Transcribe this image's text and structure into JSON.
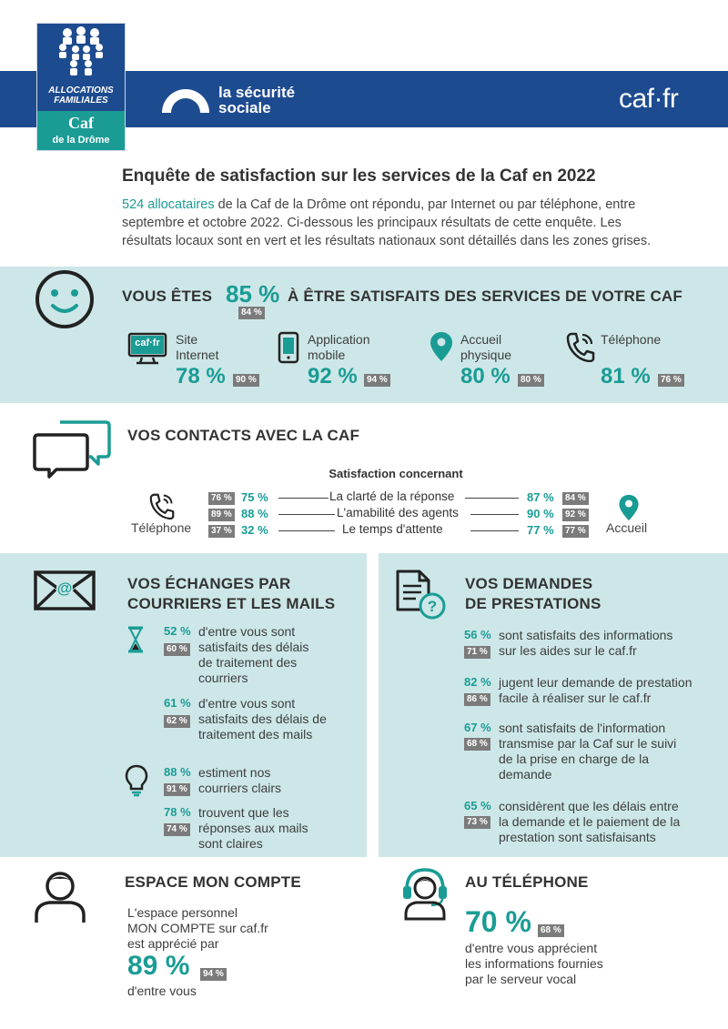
{
  "header": {
    "logo_line1": "ALLOCATIONS",
    "logo_line2": "FAMILIALES",
    "logo_caf": "Caf",
    "logo_dept": "de la Drôme",
    "secu_line1": "la sécurité",
    "secu_line2": "sociale",
    "caf_fr": "caf·fr"
  },
  "intro": {
    "title": "Enquête de satisfaction sur les services de la Caf en 2022",
    "highlight": "524 allocataires",
    "text1": " de la Caf de la Drôme ont répondu, par Internet ou par téléphone, entre",
    "text2": "septembre et octobre 2022. Ci-dessous les principaux résultats de cette enquête. Les",
    "text3": "résultats locaux sont en vert et les résultats nationaux sont détaillés dans les zones grises."
  },
  "satisfaction": {
    "prefix": "VOUS ÊTES",
    "pct": "85 %",
    "national": "84 %",
    "suffix": "À ÊTRE SATISFAITS DES SERVICES DE VOTRE CAF",
    "channels": [
      {
        "label1": "Site",
        "label2": "Internet",
        "pct": "78 %",
        "national": "90 %",
        "icon": "computer-icon",
        "icon_text": "caf·fr"
      },
      {
        "label1": "Application",
        "label2": "mobile",
        "pct": "92 %",
        "national": "94 %",
        "icon": "mobile-icon"
      },
      {
        "label1": "Accueil",
        "label2": "physique",
        "pct": "80 %",
        "national": "80 %",
        "icon": "location-icon"
      },
      {
        "label1": "Téléphone",
        "label2": "",
        "pct": "81 %",
        "national": "76 %",
        "icon": "phone-icon"
      }
    ]
  },
  "contacts": {
    "title": "VOS CONTACTS AVEC LA CAF",
    "subtitle": "Satisfaction concernant",
    "left_label": "Téléphone",
    "right_label": "Accueil",
    "rows": [
      {
        "criterion": "La clarté de la réponse",
        "phone_nat": "76 %",
        "phone_pct": "75 %",
        "acc_pct": "87 %",
        "acc_nat": "84 %"
      },
      {
        "criterion": "L'amabilité des agents",
        "phone_nat": "89 %",
        "phone_pct": "88 %",
        "acc_pct": "90 %",
        "acc_nat": "92 %"
      },
      {
        "criterion": "Le temps d'attente",
        "phone_nat": "37 %",
        "phone_pct": "32 %",
        "acc_pct": "77 %",
        "acc_nat": "77 %"
      }
    ]
  },
  "mails": {
    "title1": "VOS ÉCHANGES PAR",
    "title2": "COURRIERS ET LES MAILS",
    "delays": [
      {
        "pct": "52 %",
        "nat": "60 %",
        "lines": [
          "d'entre vous sont",
          "satisfaits des délais",
          "de traitement des",
          "courriers"
        ]
      },
      {
        "pct": "61 %",
        "nat": "62 %",
        "lines": [
          "d'entre vous sont",
          "satisfaits des délais de",
          "traitement des mails"
        ]
      }
    ],
    "clarity": [
      {
        "pct": "88 %",
        "nat": "91 %",
        "lines": [
          "estiment nos",
          "courriers clairs"
        ]
      },
      {
        "pct": "78 %",
        "nat": "74 %",
        "lines": [
          "trouvent que les",
          "réponses aux mails",
          "sont claires"
        ]
      }
    ]
  },
  "demandes": {
    "title1": "VOS DEMANDES",
    "title2": "DE PRESTATIONS",
    "items": [
      {
        "pct": "56 %",
        "nat": "71 %",
        "lines": [
          "sont satisfaits des informations",
          "sur les aides sur le caf.fr"
        ]
      },
      {
        "pct": "82 %",
        "nat": "86 %",
        "lines": [
          "jugent leur demande de prestation",
          "facile à réaliser sur le caf.fr"
        ]
      },
      {
        "pct": "67 %",
        "nat": "68 %",
        "lines": [
          "sont satisfaits de l'information",
          "transmise par la Caf sur le suivi",
          "de la prise en charge de la",
          "demande"
        ]
      },
      {
        "pct": "65 %",
        "nat": "73 %",
        "lines": [
          "considèrent que les délais entre",
          "la demande et le paiement de la",
          "prestation sont satisfaisants"
        ]
      }
    ]
  },
  "compte": {
    "title": "ESPACE MON COMPTE",
    "line1": "L'espace personnel",
    "line2": "MON COMPTE sur caf.fr",
    "line3": "est apprécié par",
    "pct": "89 %",
    "nat": "94 %",
    "line4": "d'entre vous"
  },
  "telephone": {
    "title": "AU TÉLÉPHONE",
    "pct": "70 %",
    "nat": "68 %",
    "line1": "d'entre vous apprécient",
    "line2": "les informations fournies",
    "line3": "par le serveur vocal"
  },
  "colors": {
    "navy": "#1d4b8f",
    "teal": "#1a9c95",
    "light_band": "#cde7e8",
    "grey_badge": "#7b7b7b"
  }
}
